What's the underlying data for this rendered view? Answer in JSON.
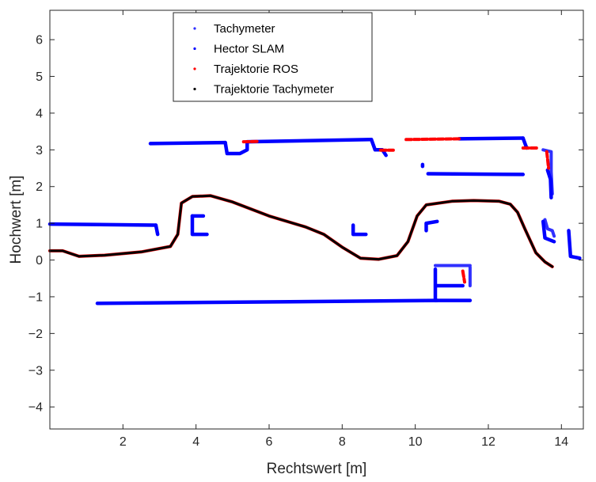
{
  "chart_data": {
    "type": "scatter",
    "title": "",
    "xlabel": "Rechtswert [m]",
    "ylabel": "Hochwert [m]",
    "xlim": [
      0,
      14.6
    ],
    "ylim": [
      -4.6,
      6.8
    ],
    "xticks": [
      2,
      4,
      6,
      8,
      10,
      12,
      14
    ],
    "yticks": [
      -4,
      -3,
      -2,
      -1,
      0,
      1,
      2,
      3,
      4,
      5,
      6
    ],
    "grid": false,
    "legend_position": "top-center",
    "series": [
      {
        "name": "Tachymeter",
        "color": "#3030ff",
        "marker": "dot",
        "segments": [
          [
            [
              13.5,
              3.0
            ],
            [
              13.72,
              2.95
            ],
            [
              13.72,
              2.4
            ],
            [
              13.75,
              1.8
            ]
          ],
          [
            [
              10.55,
              -0.15
            ],
            [
              11.5,
              -0.15
            ]
          ],
          [
            [
              11.5,
              -0.2
            ],
            [
              11.5,
              -0.7
            ]
          ],
          [
            [
              13.55,
              1.1
            ],
            [
              13.62,
              0.85
            ],
            [
              13.75,
              0.8
            ],
            [
              13.8,
              0.65
            ]
          ]
        ]
      },
      {
        "name": "Hector SLAM",
        "color": "#0000ff",
        "marker": "dot",
        "segments": [
          [
            [
              0,
              0.98
            ],
            [
              2.9,
              0.95
            ]
          ],
          [
            [
              2.9,
              0.95
            ],
            [
              2.95,
              0.7
            ]
          ],
          [
            [
              2.75,
              3.17
            ],
            [
              4.8,
              3.2
            ]
          ],
          [
            [
              4.8,
              3.2
            ],
            [
              4.85,
              2.9
            ],
            [
              5.2,
              2.9
            ],
            [
              5.4,
              3.0
            ],
            [
              5.4,
              3.2
            ]
          ],
          [
            [
              5.4,
              3.22
            ],
            [
              8.8,
              3.28
            ]
          ],
          [
            [
              8.8,
              3.28
            ],
            [
              8.9,
              3.0
            ],
            [
              9.1,
              3.0
            ],
            [
              9.2,
              2.85
            ]
          ],
          [
            [
              10.35,
              2.35
            ],
            [
              12.95,
              2.33
            ]
          ],
          [
            [
              11.2,
              3.3
            ],
            [
              12.95,
              3.32
            ]
          ],
          [
            [
              12.95,
              3.32
            ],
            [
              13.05,
              3.05
            ]
          ],
          [
            [
              3.9,
              1.2
            ],
            [
              4.2,
              1.2
            ]
          ],
          [
            [
              3.9,
              1.2
            ],
            [
              3.9,
              0.7
            ],
            [
              4.3,
              0.7
            ]
          ],
          [
            [
              8.3,
              0.95
            ],
            [
              8.3,
              0.7
            ],
            [
              8.65,
              0.7
            ]
          ],
          [
            [
              10.3,
              0.8
            ],
            [
              10.3,
              1.0
            ],
            [
              10.6,
              1.05
            ]
          ],
          [
            [
              1.3,
              -1.18
            ],
            [
              10.6,
              -1.1
            ]
          ],
          [
            [
              10.55,
              -0.25
            ],
            [
              10.55,
              -1.1
            ]
          ],
          [
            [
              10.55,
              -1.1
            ],
            [
              11.5,
              -1.1
            ]
          ],
          [
            [
              10.6,
              -0.7
            ],
            [
              11.3,
              -0.7
            ]
          ],
          [
            [
              10.2,
              2.6
            ],
            [
              10.2,
              2.55
            ]
          ],
          [
            [
              13.62,
              2.45
            ],
            [
              13.7,
              2.2
            ],
            [
              13.72,
              1.7
            ]
          ],
          [
            [
              13.5,
              1.05
            ],
            [
              13.55,
              0.6
            ],
            [
              13.8,
              0.5
            ]
          ],
          [
            [
              14.2,
              0.8
            ],
            [
              14.25,
              0.1
            ],
            [
              14.5,
              0.05
            ]
          ]
        ]
      },
      {
        "name": "Trajektorie ROS",
        "color": "#ff0000",
        "marker": "dot",
        "segments": [
          [
            [
              5.3,
              3.22
            ],
            [
              5.7,
              3.23
            ]
          ],
          [
            [
              9.05,
              2.99
            ],
            [
              9.4,
              2.99
            ]
          ],
          [
            [
              9.75,
              3.28
            ],
            [
              11.2,
              3.3
            ]
          ],
          [
            [
              12.95,
              3.05
            ],
            [
              13.35,
              3.05
            ]
          ],
          [
            [
              13.6,
              2.95
            ],
            [
              13.65,
              2.5
            ]
          ],
          [
            [
              11.3,
              -0.3
            ],
            [
              11.35,
              -0.6
            ]
          ],
          [
            [
              0,
              0.25
            ],
            [
              0.35,
              0.25
            ],
            [
              0.8,
              0.1
            ],
            [
              1.5,
              0.13
            ],
            [
              2.5,
              0.22
            ],
            [
              3.3,
              0.37
            ],
            [
              3.5,
              0.7
            ],
            [
              3.6,
              1.55
            ],
            [
              3.9,
              1.73
            ],
            [
              4.4,
              1.75
            ],
            [
              5.0,
              1.58
            ],
            [
              6.0,
              1.2
            ],
            [
              7.0,
              0.9
            ],
            [
              7.5,
              0.7
            ],
            [
              8.0,
              0.35
            ],
            [
              8.5,
              0.05
            ],
            [
              9.0,
              0.02
            ],
            [
              9.5,
              0.12
            ],
            [
              9.8,
              0.5
            ],
            [
              10.05,
              1.2
            ],
            [
              10.3,
              1.5
            ],
            [
              11.0,
              1.6
            ],
            [
              11.6,
              1.62
            ],
            [
              12.3,
              1.6
            ],
            [
              12.6,
              1.52
            ],
            [
              12.8,
              1.3
            ],
            [
              13.0,
              0.85
            ],
            [
              13.3,
              0.2
            ],
            [
              13.55,
              -0.05
            ],
            [
              13.75,
              -0.18
            ]
          ]
        ]
      },
      {
        "name": "Trajektorie Tachymeter",
        "color": "#000000",
        "marker": "dot",
        "segments": [
          [
            [
              0,
              0.25
            ],
            [
              0.35,
              0.25
            ],
            [
              0.8,
              0.1
            ],
            [
              1.5,
              0.13
            ],
            [
              2.5,
              0.22
            ],
            [
              3.3,
              0.37
            ],
            [
              3.5,
              0.7
            ],
            [
              3.6,
              1.55
            ],
            [
              3.9,
              1.73
            ],
            [
              4.4,
              1.75
            ],
            [
              5.0,
              1.58
            ],
            [
              6.0,
              1.2
            ],
            [
              7.0,
              0.9
            ],
            [
              7.5,
              0.7
            ],
            [
              8.0,
              0.35
            ],
            [
              8.5,
              0.05
            ],
            [
              9.0,
              0.02
            ],
            [
              9.5,
              0.12
            ],
            [
              9.8,
              0.5
            ],
            [
              10.05,
              1.2
            ],
            [
              10.3,
              1.5
            ],
            [
              11.0,
              1.6
            ],
            [
              11.6,
              1.62
            ],
            [
              12.3,
              1.6
            ],
            [
              12.6,
              1.52
            ],
            [
              12.8,
              1.3
            ],
            [
              13.0,
              0.85
            ],
            [
              13.3,
              0.2
            ],
            [
              13.55,
              -0.05
            ],
            [
              13.75,
              -0.18
            ]
          ]
        ]
      }
    ]
  }
}
